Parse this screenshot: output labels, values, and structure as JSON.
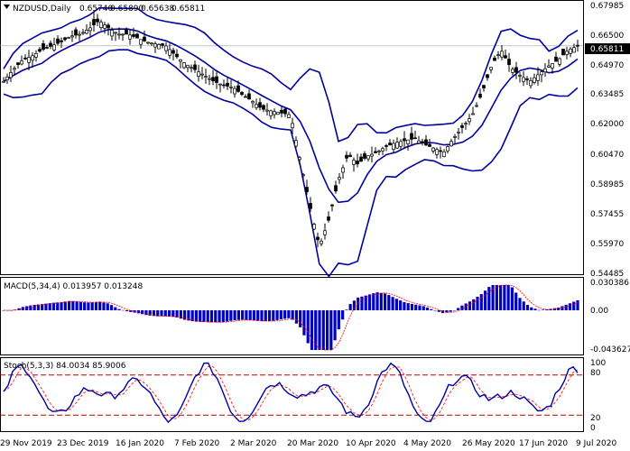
{
  "header": {
    "symbol": "NZDUSD,Daily",
    "open": "0.65740",
    "high": "0.65890",
    "low": "0.65638",
    "close": "0.65811"
  },
  "price_axis": {
    "ticks": [
      "0.67985",
      "0.66500",
      "0.64970",
      "0.63485",
      "0.62000",
      "0.60470",
      "0.58985",
      "0.57455",
      "0.55970",
      "0.54485"
    ],
    "current": "0.65811"
  },
  "macd": {
    "label": "MACD(5,34,4) 0.013957 0.013248",
    "ticks": [
      "0.030386",
      "0.00",
      "-0.043627"
    ]
  },
  "stoch": {
    "label": "Stoch(5,3,3) 84.0034 85.9006",
    "ticks": [
      "100",
      "80",
      "20",
      "0"
    ]
  },
  "time_axis": {
    "labels": [
      "29 Nov 2019",
      "23 Dec 2019",
      "16 Jan 2020",
      "7 Feb 2020",
      "2 Mar 2020",
      "20 Mar 2020",
      "10 Apr 2020",
      "4 May 2020",
      "26 May 2020",
      "17 Jun 2020",
      "9 Jul 2020"
    ]
  },
  "colors": {
    "bands": "#0000a0",
    "macd_bars": "#0000c0",
    "signal": "#ff0000",
    "candles": "#000000",
    "level_lines": "#c00000"
  },
  "chart_data": {
    "type": "line",
    "title": "NZDUSD,Daily",
    "ylim": [
      0.543,
      0.68
    ],
    "x_start": "2019-11-20",
    "x_end": "2020-07-09",
    "series": [
      {
        "name": "price",
        "values": [
          0.64,
          0.646,
          0.651,
          0.653,
          0.656,
          0.658,
          0.66,
          0.663,
          0.664,
          0.667,
          0.671,
          0.667,
          0.664,
          0.664,
          0.662,
          0.66,
          0.659,
          0.658,
          0.653,
          0.649,
          0.646,
          0.643,
          0.64,
          0.638,
          0.637,
          0.633,
          0.63,
          0.626,
          0.625,
          0.624,
          0.623,
          0.6,
          0.577,
          0.556,
          0.57,
          0.59,
          0.603,
          0.598,
          0.602,
          0.604,
          0.607,
          0.609,
          0.61,
          0.611,
          0.608,
          0.606,
          0.604,
          0.611,
          0.617,
          0.623,
          0.634,
          0.648,
          0.656,
          0.647,
          0.643,
          0.64,
          0.644,
          0.648,
          0.651,
          0.656,
          0.658
        ]
      }
    ]
  }
}
